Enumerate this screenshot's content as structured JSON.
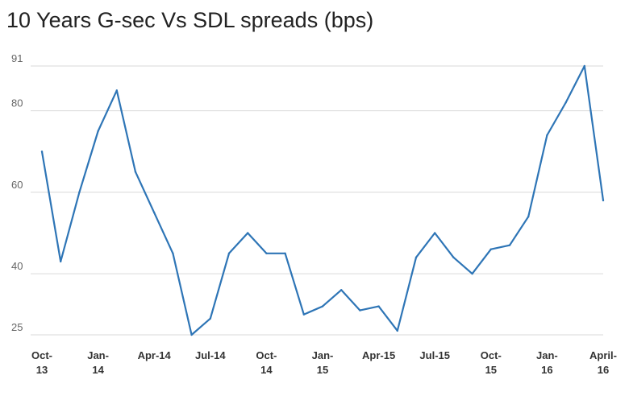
{
  "chart_data": {
    "type": "line",
    "title": "10 Years G-sec Vs SDL spreads (bps)",
    "xlabel": "",
    "ylabel": "",
    "ylim": [
      25,
      91
    ],
    "yticks": [
      25,
      40,
      60,
      80,
      91
    ],
    "grid": true,
    "x_tick_labels": [
      {
        "index": 0,
        "lines": [
          "Oct-",
          "13"
        ]
      },
      {
        "index": 3,
        "lines": [
          "Jan-",
          "14"
        ]
      },
      {
        "index": 6,
        "lines": [
          "Apr-14"
        ]
      },
      {
        "index": 9,
        "lines": [
          "Jul-14"
        ]
      },
      {
        "index": 12,
        "lines": [
          "Oct-",
          "14"
        ]
      },
      {
        "index": 15,
        "lines": [
          "Jan-",
          "15"
        ]
      },
      {
        "index": 18,
        "lines": [
          "Apr-15"
        ]
      },
      {
        "index": 21,
        "lines": [
          "Jul-15"
        ]
      },
      {
        "index": 24,
        "lines": [
          "Oct-",
          "15"
        ]
      },
      {
        "index": 27,
        "lines": [
          "Jan-",
          "16"
        ]
      },
      {
        "index": 30,
        "lines": [
          "April-",
          "16"
        ]
      }
    ],
    "x": [
      "Oct-13",
      "Nov-13",
      "Dec-13",
      "Jan-14",
      "Feb-14",
      "Mar-14",
      "Apr-14",
      "May-14",
      "Jun-14",
      "Jul-14",
      "Aug-14",
      "Sep-14",
      "Oct-14",
      "Nov-14",
      "Dec-14",
      "Jan-15",
      "Feb-15",
      "Mar-15",
      "Apr-15",
      "May-15",
      "Jun-15",
      "Jul-15",
      "Aug-15",
      "Sep-15",
      "Oct-15",
      "Nov-15",
      "Dec-15",
      "Jan-16",
      "Feb-16",
      "Mar-16",
      "Apr-16"
    ],
    "series": [
      {
        "color": "#2e75b6",
        "values": [
          70,
          43,
          60,
          75,
          85,
          65,
          55,
          45,
          25,
          29,
          45,
          50,
          45,
          45,
          30,
          32,
          36,
          31,
          32,
          26,
          44,
          50,
          44,
          40,
          46,
          47,
          54,
          74,
          82,
          91,
          58
        ]
      }
    ]
  }
}
